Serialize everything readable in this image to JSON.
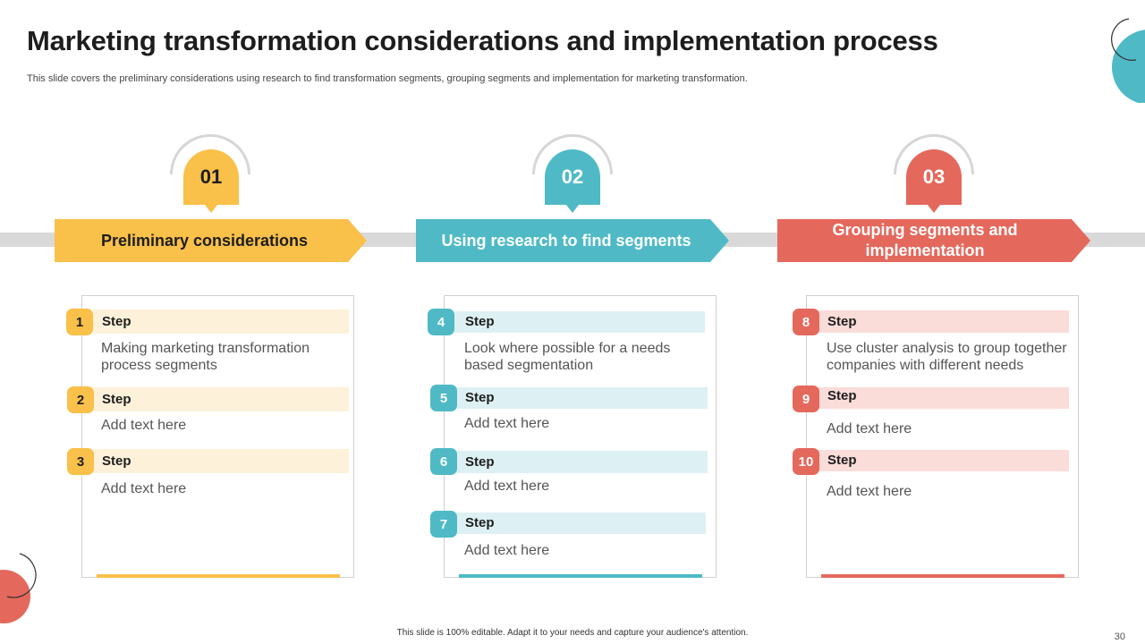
{
  "slide": {
    "title": "Marketing transformation considerations and implementation process",
    "subtitle": "This slide covers the preliminary considerations using research to find transformation segments, grouping segments and implementation for marketing transformation.",
    "footer": "This slide is 100% editable. Adapt it to your needs and capture your audience's attention.",
    "page_number": "30"
  },
  "colors": {
    "yellow": "#F9C04A",
    "teal": "#4FBAC6",
    "coral": "#E4685C",
    "yellow_light": "#FDF1DA",
    "teal_light": "#DDF0F3",
    "coral_light": "#FADCD9"
  },
  "phases": [
    {
      "number": "01",
      "banner": "Preliminary considerations",
      "steps": [
        {
          "num": "1",
          "label": "Step",
          "text": "Making marketing transformation process segments"
        },
        {
          "num": "2",
          "label": "Step",
          "text": "Add text here"
        },
        {
          "num": "3",
          "label": "Step",
          "text": "Add text here"
        }
      ]
    },
    {
      "number": "02",
      "banner": "Using research to find segments",
      "steps": [
        {
          "num": "4",
          "label": "Step",
          "text": "Look where possible for a needs based segmentation"
        },
        {
          "num": "5",
          "label": "Step",
          "text": "Add text here"
        },
        {
          "num": "6",
          "label": "Step",
          "text": "Add text here"
        },
        {
          "num": "7",
          "label": "Step",
          "text": "Add text here"
        }
      ]
    },
    {
      "number": "03",
      "banner": "Grouping segments and implementation",
      "steps": [
        {
          "num": "8",
          "label": "Step",
          "text": "Use cluster analysis to group together companies with different needs"
        },
        {
          "num": "9",
          "label": "Step",
          "text": "Add text here"
        },
        {
          "num": "10",
          "label": "Step",
          "text": "Add text here"
        }
      ]
    }
  ]
}
